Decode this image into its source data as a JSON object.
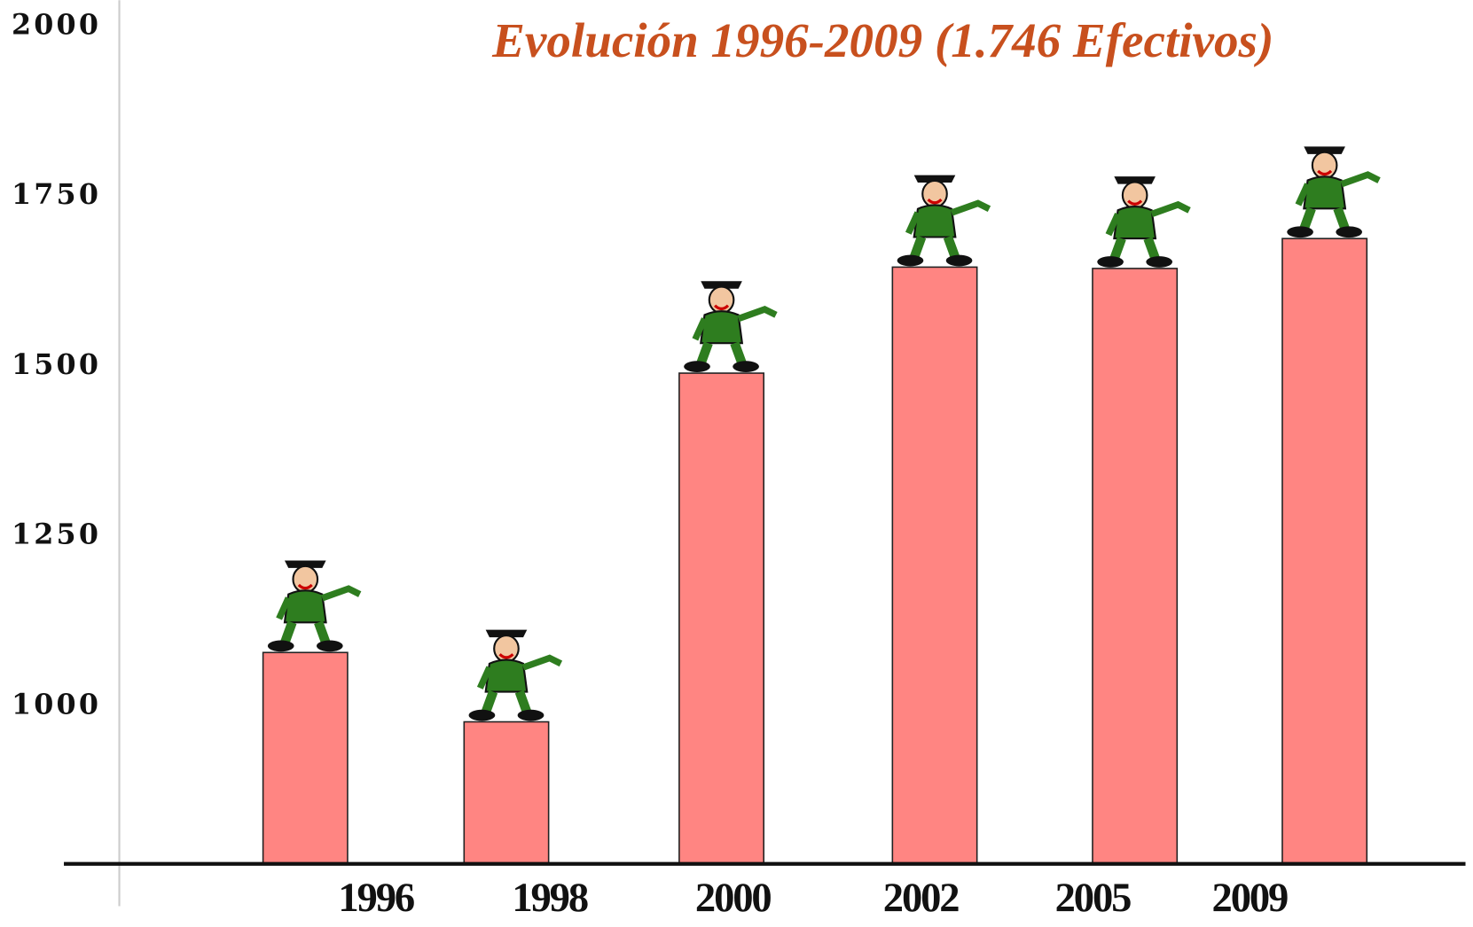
{
  "chart_data": {
    "type": "bar",
    "title": "Evolución 1996-2009 (1.746 Efectivos)",
    "categories": [
      "1996",
      "1998",
      "2000",
      "2002",
      "2005",
      "2009"
    ],
    "values": [
      1079,
      977,
      1490,
      1646,
      1644,
      1688
    ],
    "color": "#ff8582",
    "ylim": [
      768,
      2000
    ],
    "yticks": [
      1000,
      1250,
      1500,
      1750,
      2000
    ],
    "grid": false
  }
}
